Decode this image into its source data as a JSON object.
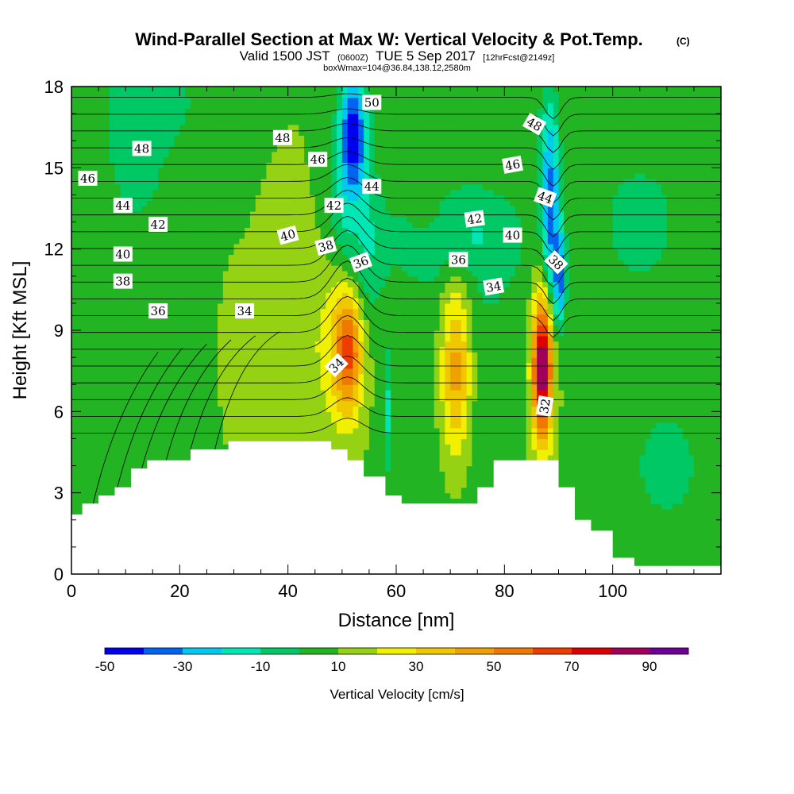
{
  "title": {
    "main": "Wind-Parallel Section at Max W: Vertical Velocity & Pot.Temp.",
    "copyright": "(C)",
    "valid_prefix": "Valid 1500 JST",
    "valid_utc": "(0600Z)",
    "valid_date": "TUE 5 Sep 2017",
    "forecast": "[12hrFcst@2149z]",
    "box_info": "boxWmax=104@36.84,138.12,2580m"
  },
  "chart_data": {
    "type": "heatmap",
    "xlabel": "Distance [nm]",
    "ylabel": "Height [Kft MSL]",
    "xlim": [
      0,
      120
    ],
    "ylim": [
      0,
      18
    ],
    "x_ticks": [
      "0",
      "20",
      "40",
      "60",
      "80",
      "100"
    ],
    "x_tick_values": [
      0,
      20,
      40,
      60,
      80,
      100
    ],
    "y_ticks": [
      "0",
      "3",
      "6",
      "9",
      "12",
      "15",
      "18"
    ],
    "y_tick_values": [
      0,
      3,
      6,
      9,
      12,
      15,
      18
    ],
    "colorbar": {
      "title": "Vertical Velocity [cm/s]",
      "levels": [
        -50,
        -40,
        -30,
        -20,
        -10,
        0,
        10,
        20,
        30,
        40,
        50,
        60,
        70,
        80,
        90,
        100
      ],
      "colors": [
        "#0000f0",
        "#0064f0",
        "#00c8f0",
        "#00e6b4",
        "#00c864",
        "#22b422",
        "#96d214",
        "#f0f000",
        "#f0c800",
        "#f0a000",
        "#f07800",
        "#f03c00",
        "#dc0000",
        "#a0005a",
        "#6e0096"
      ],
      "tick_labels": [
        "-50",
        "-30",
        "-10",
        "10",
        "30",
        "50",
        "70",
        "90"
      ],
      "tick_values": [
        -50,
        -30,
        -10,
        10,
        30,
        50,
        70,
        90
      ]
    },
    "terrain_kft": [
      [
        0,
        2.2
      ],
      [
        2,
        2.2
      ],
      [
        2,
        2.6
      ],
      [
        5,
        2.6
      ],
      [
        5,
        2.9
      ],
      [
        8,
        2.9
      ],
      [
        8,
        3.2
      ],
      [
        11,
        3.2
      ],
      [
        11,
        3.9
      ],
      [
        14,
        3.9
      ],
      [
        14,
        4.2
      ],
      [
        22,
        4.2
      ],
      [
        22,
        4.6
      ],
      [
        29,
        4.6
      ],
      [
        29,
        4.9
      ],
      [
        48,
        4.9
      ],
      [
        48,
        4.6
      ],
      [
        51,
        4.6
      ],
      [
        51,
        4.2
      ],
      [
        54,
        4.2
      ],
      [
        54,
        3.6
      ],
      [
        58,
        3.6
      ],
      [
        58,
        2.9
      ],
      [
        61,
        2.9
      ],
      [
        61,
        2.6
      ],
      [
        75,
        2.6
      ],
      [
        75,
        3.2
      ],
      [
        78,
        3.2
      ],
      [
        78,
        4.2
      ],
      [
        90,
        4.2
      ],
      [
        90,
        3.2
      ],
      [
        93,
        3.2
      ],
      [
        93,
        2.0
      ],
      [
        96,
        2.0
      ],
      [
        96,
        1.6
      ],
      [
        100,
        1.6
      ],
      [
        100,
        0.6
      ],
      [
        104,
        0.6
      ],
      [
        104,
        0.3
      ],
      [
        120,
        0.3
      ]
    ],
    "velocity_features": [
      {
        "x": 60,
        "y": 9,
        "rx": 60,
        "ry": 9,
        "w": 10
      },
      {
        "x": 12,
        "y": 15.5,
        "rx": 7,
        "ry": 3.5,
        "w": -5
      },
      {
        "x": 15,
        "y": 17.5,
        "rx": 9,
        "ry": 2,
        "w": -8
      },
      {
        "x": 105,
        "y": 13,
        "rx": 14,
        "ry": 4.5,
        "w": -2
      },
      {
        "x": 8,
        "y": 6,
        "rx": 10,
        "ry": 3.5,
        "w": 2
      },
      {
        "x": 75,
        "y": 9,
        "rx": 16,
        "ry": 9,
        "w": 0
      },
      {
        "x": 110,
        "y": 4,
        "rx": 12,
        "ry": 4,
        "w": -2
      },
      {
        "x": 52,
        "y": 13.5,
        "rx": 4,
        "ry": 5,
        "w": -22
      },
      {
        "x": 52,
        "y": 16,
        "rx": 2.3,
        "ry": 2.6,
        "w": -50
      },
      {
        "x": 53,
        "y": 12,
        "rx": 5,
        "ry": 2.5,
        "w": -15
      },
      {
        "x": 70,
        "y": 12.5,
        "rx": 12,
        "ry": 1.7,
        "w": -15
      },
      {
        "x": 88,
        "y": 15.5,
        "rx": 2,
        "ry": 2.5,
        "w": -10
      },
      {
        "x": 88.5,
        "y": 13,
        "rx": 1.7,
        "ry": 4,
        "w": -38
      },
      {
        "x": 90,
        "y": 11,
        "rx": 1.2,
        "ry": 2,
        "w": -45
      },
      {
        "x": 65,
        "y": 13.5,
        "rx": 6,
        "ry": 2,
        "w": 2
      },
      {
        "x": 47,
        "y": 8.5,
        "rx": 6,
        "ry": 4,
        "w": 20
      },
      {
        "x": 51,
        "y": 8.2,
        "rx": 3,
        "ry": 2.5,
        "w": 65
      },
      {
        "x": 71,
        "y": 7.5,
        "rx": 3.2,
        "ry": 3.7,
        "w": 43
      },
      {
        "x": 87,
        "y": 7.5,
        "rx": 2.5,
        "ry": 3.5,
        "w": 50
      },
      {
        "x": 87,
        "y": 7.6,
        "rx": 1.5,
        "ry": 2.2,
        "w": 92
      },
      {
        "x": 32,
        "y": 7.5,
        "rx": 3,
        "ry": 2,
        "w": 12
      },
      {
        "x": 41,
        "y": 12.2,
        "rx": 1.5,
        "ry": 1.2,
        "w": 18
      },
      {
        "x": 58.5,
        "y": 6,
        "rx": 0.8,
        "ry": 2.5,
        "w": -12
      }
    ],
    "contour_labels": [
      {
        "text": "50",
        "x": 55.5,
        "y": 17.4,
        "rot": 0
      },
      {
        "text": "48",
        "x": 13,
        "y": 15.7,
        "rot": 0
      },
      {
        "text": "48",
        "x": 39,
        "y": 16.1,
        "rot": 0
      },
      {
        "text": "48",
        "x": 85.5,
        "y": 16.6,
        "rot": 30
      },
      {
        "text": "46",
        "x": 3,
        "y": 14.6,
        "rot": 0
      },
      {
        "text": "46",
        "x": 45.5,
        "y": 15.3,
        "rot": 0
      },
      {
        "text": "46",
        "x": 81.5,
        "y": 15.1,
        "rot": -10
      },
      {
        "text": "44",
        "x": 9.5,
        "y": 13.6,
        "rot": 0
      },
      {
        "text": "44",
        "x": 55.5,
        "y": 14.3,
        "rot": 0
      },
      {
        "text": "44",
        "x": 87.5,
        "y": 13.9,
        "rot": 20
      },
      {
        "text": "42",
        "x": 16,
        "y": 12.9,
        "rot": 0
      },
      {
        "text": "42",
        "x": 48.5,
        "y": 13.6,
        "rot": 0
      },
      {
        "text": "42",
        "x": 74.5,
        "y": 13.1,
        "rot": -8
      },
      {
        "text": "40",
        "x": 9.5,
        "y": 11.8,
        "rot": 0
      },
      {
        "text": "40",
        "x": 40,
        "y": 12.5,
        "rot": -15
      },
      {
        "text": "40",
        "x": 81.5,
        "y": 12.5,
        "rot": 0
      },
      {
        "text": "38",
        "x": 9.5,
        "y": 10.8,
        "rot": 0
      },
      {
        "text": "38",
        "x": 47,
        "y": 12.1,
        "rot": -15
      },
      {
        "text": "38",
        "x": 89.5,
        "y": 11.5,
        "rot": 45
      },
      {
        "text": "36",
        "x": 16,
        "y": 9.7,
        "rot": 0
      },
      {
        "text": "36",
        "x": 53.5,
        "y": 11.5,
        "rot": -20
      },
      {
        "text": "36",
        "x": 71.5,
        "y": 11.6,
        "rot": 0
      },
      {
        "text": "34",
        "x": 32,
        "y": 9.7,
        "rot": 0
      },
      {
        "text": "34",
        "x": 49,
        "y": 7.7,
        "rot": -45
      },
      {
        "text": "34",
        "x": 78,
        "y": 10.6,
        "rot": -10
      },
      {
        "text": "32",
        "x": 87.5,
        "y": 6.2,
        "rot": -80
      }
    ]
  }
}
